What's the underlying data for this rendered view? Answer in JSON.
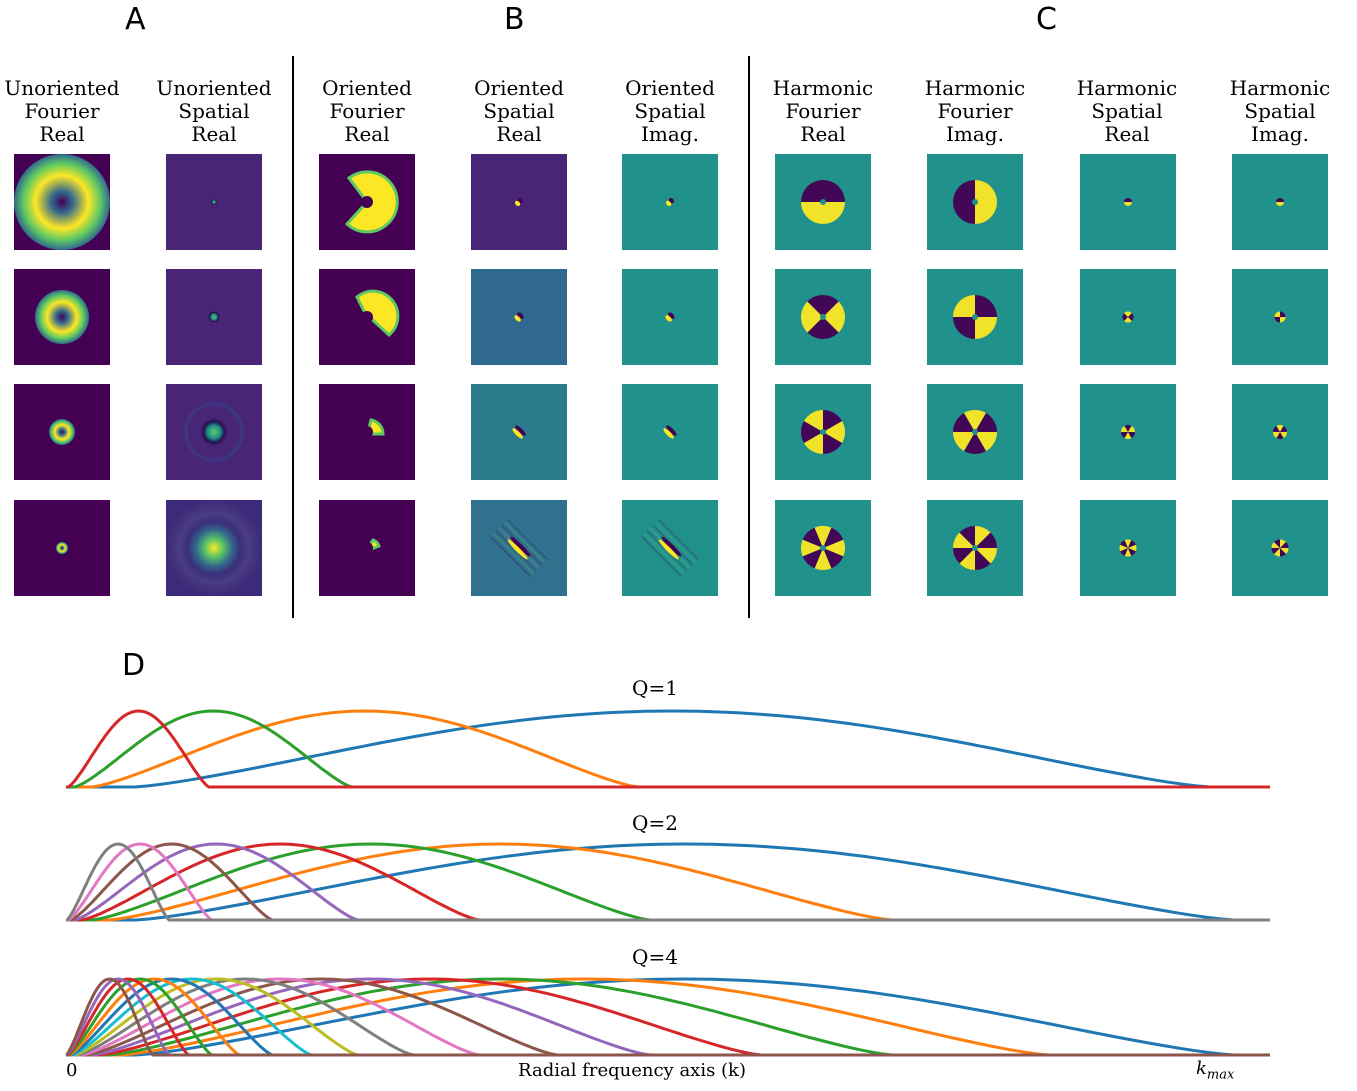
{
  "panels": {
    "a_label": "A",
    "b_label": "B",
    "c_label": "C",
    "d_label": "D"
  },
  "columns": [
    {
      "title": "Unoriented\nFourier\nReal"
    },
    {
      "title": "Unoriented\nSpatial\nReal"
    },
    {
      "title": "Oriented\nFourier\nReal"
    },
    {
      "title": "Oriented\nSpatial\nReal"
    },
    {
      "title": "Oriented\nSpatial\nImag."
    },
    {
      "title": "Harmonic\nFourier\nReal"
    },
    {
      "title": "Harmonic\nFourier\nImag."
    },
    {
      "title": "Harmonic\nSpatial\nReal"
    },
    {
      "title": "Harmonic\nSpatial\nImag."
    }
  ],
  "colors": {
    "viridis_dark": "#440154",
    "viridis_purple": "#482576",
    "viridis_blue": "#31688e",
    "viridis_teal": "#21918c",
    "viridis_green": "#5ec962",
    "viridis_yellow": "#fde725",
    "series": [
      "#1f77b4",
      "#ff7f0e",
      "#2ca02c",
      "#d62728",
      "#9467bd",
      "#8c564b",
      "#e377c2",
      "#7f7f7f",
      "#bcbd22",
      "#17becf"
    ]
  },
  "chart_data": [
    {
      "type": "line",
      "title": "Q=1",
      "filters": 4,
      "x_start": "0",
      "x_end": "k_max"
    },
    {
      "type": "line",
      "title": "Q=2",
      "filters": 8,
      "x_start": "0",
      "x_end": "k_max"
    },
    {
      "type": "line",
      "title": "Q=4",
      "filters": 16,
      "x_start": "0",
      "x_end": "k_max"
    }
  ],
  "axis": {
    "zero": "0",
    "label": "Radial frequency axis (k)",
    "kmax_base": "k",
    "kmax_sub": "max"
  }
}
